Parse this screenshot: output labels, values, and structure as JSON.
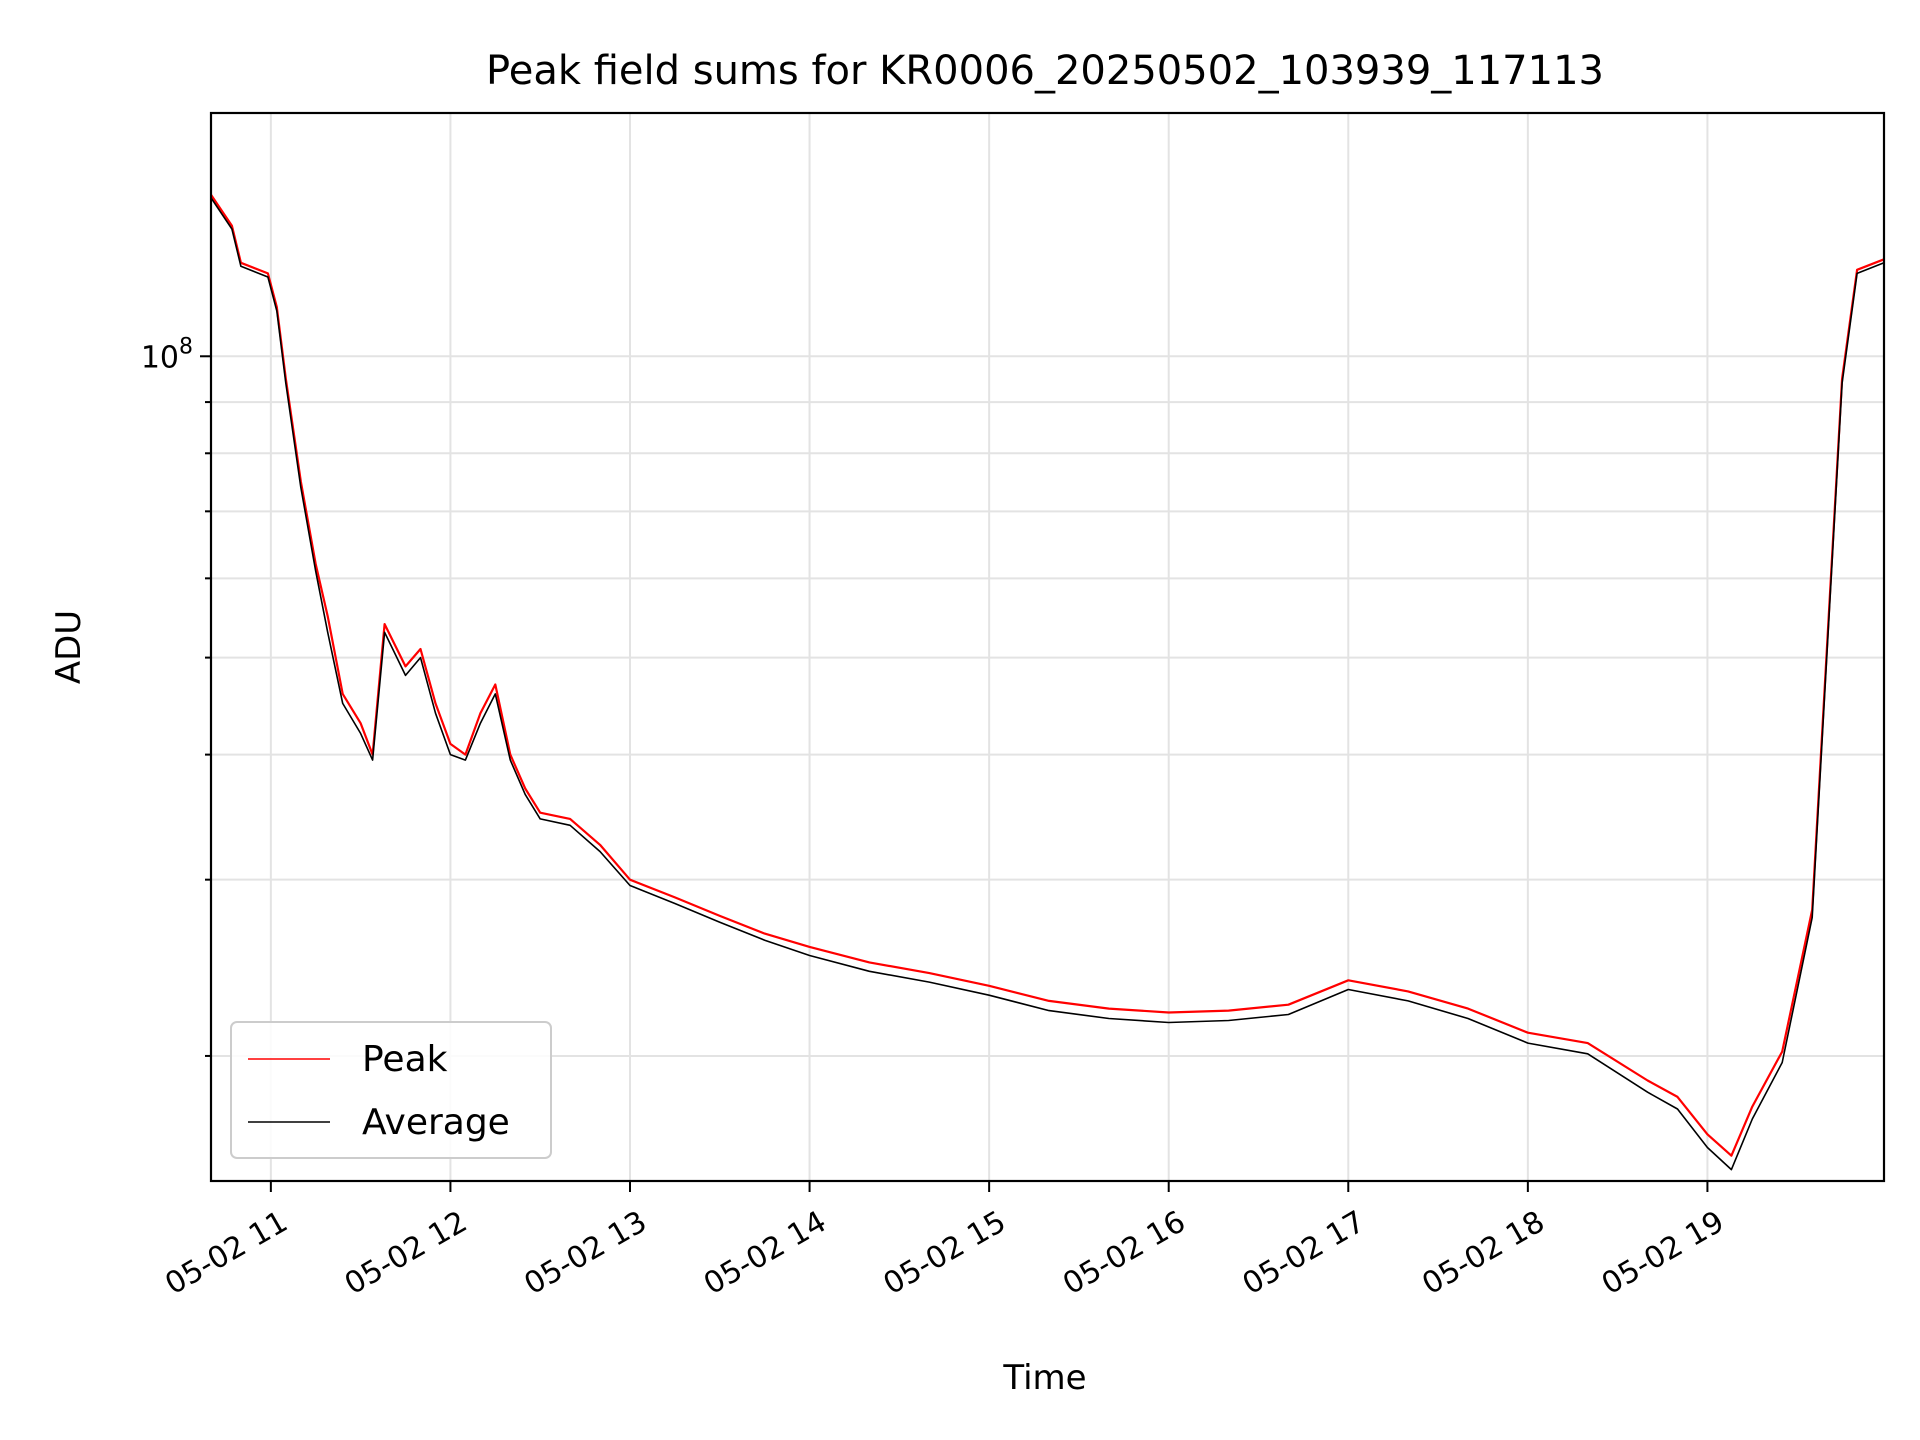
{
  "chart_data": {
    "type": "line",
    "title": "Peak field sums for KR0006_20250502_103939_117113",
    "xlabel": "Time",
    "ylabel": "ADU",
    "y_scale": "log",
    "ylim": [
      15000000,
      175000000
    ],
    "xlim": [
      "05-02 10:40",
      "05-02 19:59"
    ],
    "x_ticks": [
      "05-02 11",
      "05-02 12",
      "05-02 13",
      "05-02 14",
      "05-02 15",
      "05-02 16",
      "05-02 17",
      "05-02 18",
      "05-02 19"
    ],
    "x_tick_times": [
      "05-02 11:00",
      "05-02 12:00",
      "05-02 13:00",
      "05-02 14:00",
      "05-02 15:00",
      "05-02 16:00",
      "05-02 17:00",
      "05-02 18:00",
      "05-02 19:00"
    ],
    "y_major_tick": {
      "value": 100000000,
      "base": "10",
      "exponent": "8"
    },
    "y_minor_ticks": [
      20000000,
      30000000,
      40000000,
      50000000,
      60000000,
      70000000,
      80000000,
      90000000
    ],
    "grid": true,
    "legend": {
      "position": "lower-left"
    },
    "x": [
      "05-02 10:40",
      "05-02 10:47",
      "05-02 10:50",
      "05-02 10:59",
      "05-02 11:02",
      "05-02 11:05",
      "05-02 11:10",
      "05-02 11:15",
      "05-02 11:19",
      "05-02 11:24",
      "05-02 11:30",
      "05-02 11:34",
      "05-02 11:38",
      "05-02 11:45",
      "05-02 11:50",
      "05-02 11:55",
      "05-02 12:00",
      "05-02 12:05",
      "05-02 12:10",
      "05-02 12:15",
      "05-02 12:20",
      "05-02 12:25",
      "05-02 12:30",
      "05-02 12:40",
      "05-02 12:50",
      "05-02 13:00",
      "05-02 13:15",
      "05-02 13:30",
      "05-02 13:45",
      "05-02 14:00",
      "05-02 14:20",
      "05-02 14:40",
      "05-02 15:00",
      "05-02 15:20",
      "05-02 15:40",
      "05-02 16:00",
      "05-02 16:20",
      "05-02 16:40",
      "05-02 17:00",
      "05-02 17:20",
      "05-02 17:40",
      "05-02 18:00",
      "05-02 18:20",
      "05-02 18:40",
      "05-02 18:50",
      "05-02 19:00",
      "05-02 19:08",
      "05-02 19:15",
      "05-02 19:25",
      "05-02 19:35",
      "05-02 19:45",
      "05-02 19:50",
      "05-02 19:59"
    ],
    "series": [
      {
        "name": "Peak",
        "color": "#ff0000",
        "values": [
          145000000,
          135000000,
          124000000,
          121000000,
          112000000,
          95000000,
          75000000,
          62000000,
          55000000,
          46000000,
          43000000,
          40000000,
          54000000,
          49000000,
          51000000,
          45000000,
          41000000,
          40000000,
          44000000,
          47000000,
          40000000,
          37000000,
          35000000,
          34500000,
          32500000,
          30000000,
          28800000,
          27600000,
          26500000,
          25700000,
          24800000,
          24200000,
          23500000,
          22700000,
          22300000,
          22100000,
          22200000,
          22500000,
          23800000,
          23200000,
          22300000,
          21100000,
          20600000,
          18900000,
          18200000,
          16700000,
          15900000,
          17800000,
          20200000,
          28000000,
          95000000,
          122000000,
          125000000
        ]
      },
      {
        "name": "Average",
        "color": "#000000",
        "values": [
          144000000,
          134000000,
          123000000,
          120000000,
          111000000,
          94000000,
          74000000,
          61000000,
          53000000,
          45000000,
          42000000,
          39500000,
          53000000,
          48000000,
          50000000,
          44000000,
          40000000,
          39500000,
          43000000,
          46000000,
          39500000,
          36500000,
          34500000,
          34000000,
          32000000,
          29600000,
          28400000,
          27200000,
          26100000,
          25200000,
          24300000,
          23700000,
          23000000,
          22200000,
          21800000,
          21600000,
          21700000,
          22000000,
          23300000,
          22700000,
          21800000,
          20600000,
          20100000,
          18400000,
          17700000,
          16200000,
          15400000,
          17300000,
          19700000,
          27500000,
          94000000,
          121000000,
          124000000
        ]
      }
    ]
  }
}
